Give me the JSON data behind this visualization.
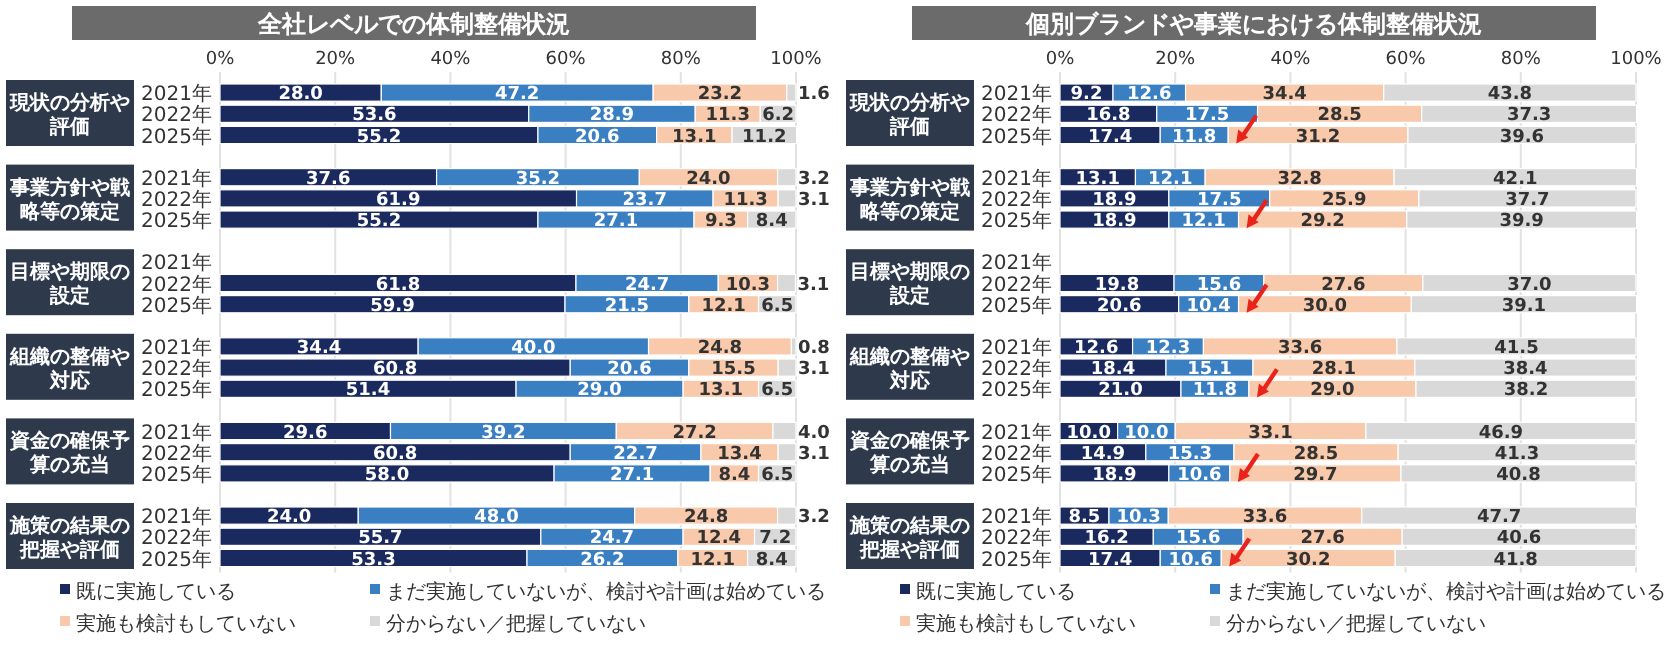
{
  "chart_data": [
    {
      "type": "bar",
      "orientation": "horizontal",
      "stacked": true,
      "grid": "x",
      "legend": "bottom",
      "title": "全社レベルでの体制整備状況",
      "categories": [
        "2021年",
        "2022年",
        "2025年",
        "2021年",
        "2022年",
        "2025年",
        "2021年",
        "2022年",
        "2025年",
        "2021年",
        "2022年",
        "2025年",
        "2021年",
        "2022年",
        "2025年",
        "2021年",
        "2022年",
        "2025年"
      ],
      "annotations": [
        "現状の分析や評価",
        "事業方針や戦略等の策定",
        "目標や期限の設定",
        "組織の整備や対応",
        "資金の確保予算の充当",
        "施策の結果の把握や評価"
      ],
      "xlim": [
        0,
        100
      ],
      "xticks": [
        {
          "value": 0,
          "label": "0%"
        },
        {
          "value": 20,
          "label": "20%"
        },
        {
          "value": 40,
          "label": "40%"
        },
        {
          "value": 60,
          "label": "60%"
        },
        {
          "value": 80,
          "label": "80%"
        },
        {
          "value": 100,
          "label": "100%"
        }
      ],
      "series": [
        {
          "name": "既に実施している",
          "color": "#1b2a5e",
          "values": [
            28.0,
            53.6,
            55.2,
            37.6,
            61.9,
            55.2,
            null,
            61.8,
            59.9,
            34.4,
            60.8,
            51.4,
            29.6,
            60.8,
            58.0,
            24.0,
            55.7,
            53.3
          ],
          "value_labels": [
            "28.0",
            "53.6",
            "55.2",
            "37.6",
            "61.9",
            "55.2",
            null,
            "61.8",
            "59.9",
            "34.4",
            "60.8",
            "51.4",
            "29.6",
            "60.8",
            "58.0",
            "24.0",
            "55.7",
            "53.3"
          ]
        },
        {
          "name": "まだ実施していないが、検討や計画は始めている",
          "color": "#3a7fc1",
          "values": [
            47.2,
            28.9,
            20.6,
            35.2,
            23.7,
            27.1,
            null,
            24.7,
            21.5,
            40.0,
            20.6,
            29.0,
            39.2,
            22.7,
            27.1,
            48.0,
            24.7,
            26.2
          ],
          "value_labels": [
            "47.2",
            "28.9",
            "20.6",
            "35.2",
            "23.7",
            "27.1",
            null,
            "24.7",
            "21.5",
            "40.0",
            "20.6",
            "29.0",
            "39.2",
            "22.7",
            "27.1",
            "48.0",
            "24.7",
            "26.2"
          ]
        },
        {
          "name": "実施も検討もしていない",
          "color": "#f8c9aa",
          "values": [
            23.2,
            11.3,
            13.1,
            24.0,
            11.3,
            9.3,
            null,
            10.3,
            12.1,
            24.8,
            15.5,
            13.1,
            27.2,
            13.4,
            8.4,
            24.8,
            12.4,
            12.1
          ],
          "value_labels": [
            "23.2",
            "11.3",
            "13.1",
            "24.0",
            "11.3",
            "9.3",
            null,
            "10.3",
            "12.1",
            "24.8",
            "15.5",
            "13.1",
            "27.2",
            "13.4",
            "8.4",
            "24.8",
            "12.4",
            "12.1"
          ]
        },
        {
          "name": "分からない／把握していない",
          "color": "#d9d9d9",
          "values": [
            1.6,
            6.2,
            11.2,
            3.2,
            3.1,
            8.4,
            null,
            3.1,
            6.5,
            0.8,
            3.1,
            6.5,
            4.0,
            3.1,
            6.5,
            3.2,
            7.2,
            8.4
          ],
          "value_labels": [
            "1.6",
            "6.2",
            "11.2",
            "3.2",
            "3.1",
            "8.4",
            null,
            "3.1",
            "6.5",
            "0.8",
            "3.1",
            "6.5",
            "4.0",
            "3.1",
            "6.5",
            "3.2",
            "7.2",
            "8.4"
          ]
        }
      ]
    },
    {
      "type": "bar",
      "orientation": "horizontal",
      "stacked": true,
      "grid": "x",
      "legend": "bottom",
      "title": "個別ブランドや事業における体制整備状況",
      "categories": [
        "2021年",
        "2022年",
        "2025年",
        "2021年",
        "2022年",
        "2025年",
        "2021年",
        "2022年",
        "2025年",
        "2021年",
        "2022年",
        "2025年",
        "2021年",
        "2022年",
        "2025年",
        "2021年",
        "2022年",
        "2025年"
      ],
      "annotations": [
        "現状の分析や評価",
        "事業方針や戦略等の策定",
        "目標や期限の設定",
        "組織の整備や対応",
        "資金の確保予算の充当",
        "施策の結果の把握や評価"
      ],
      "xlim": [
        0,
        100
      ],
      "xticks": [
        {
          "value": 0,
          "label": "0%"
        },
        {
          "value": 20,
          "label": "20%"
        },
        {
          "value": 40,
          "label": "40%"
        },
        {
          "value": 60,
          "label": "60%"
        },
        {
          "value": 80,
          "label": "80%"
        },
        {
          "value": 100,
          "label": "100%"
        }
      ],
      "series": [
        {
          "name": "既に実施している",
          "color": "#1b2a5e",
          "values": [
            9.2,
            16.8,
            17.4,
            13.1,
            18.9,
            18.9,
            null,
            19.8,
            20.6,
            12.6,
            18.4,
            21.0,
            10.0,
            14.9,
            18.9,
            8.5,
            16.2,
            17.4
          ],
          "value_labels": [
            "9.2",
            "16.8",
            "17.4",
            "13.1",
            "18.9",
            "18.9",
            null,
            "19.8",
            "20.6",
            "12.6",
            "18.4",
            "21.0",
            "10.0",
            "14.9",
            "18.9",
            "8.5",
            "16.2",
            "17.4"
          ]
        },
        {
          "name": "まだ実施していないが、検討や計画は始めている",
          "color": "#3a7fc1",
          "values": [
            12.6,
            17.5,
            11.8,
            12.1,
            17.5,
            12.1,
            null,
            15.6,
            10.4,
            12.3,
            15.1,
            11.8,
            10.0,
            15.3,
            10.6,
            10.3,
            15.6,
            10.6
          ],
          "value_labels": [
            "12.6",
            "17.5",
            "11.8",
            "12.1",
            "17.5",
            "12.1",
            null,
            "15.6",
            "10.4",
            "12.3",
            "15.1",
            "11.8",
            "10.0",
            "15.3",
            "10.6",
            "10.3",
            "15.6",
            "10.6"
          ]
        },
        {
          "name": "実施も検討もしていない",
          "color": "#f8c9aa",
          "values": [
            34.4,
            28.5,
            31.2,
            32.8,
            25.9,
            29.2,
            null,
            27.6,
            30.0,
            33.6,
            28.1,
            29.0,
            33.1,
            28.5,
            29.7,
            33.6,
            27.6,
            30.2
          ],
          "value_labels": [
            "34.4",
            "28.5",
            "31.2",
            "32.8",
            "25.9",
            "29.2",
            null,
            "27.6",
            "30.0",
            "33.6",
            "28.1",
            "29.0",
            "33.1",
            "28.5",
            "29.7",
            "33.6",
            "27.6",
            "30.2"
          ]
        },
        {
          "name": "分からない／把握していない",
          "color": "#d9d9d9",
          "values": [
            43.8,
            37.3,
            39.6,
            42.1,
            37.7,
            39.9,
            null,
            37.0,
            39.1,
            41.5,
            38.4,
            38.2,
            46.9,
            41.3,
            40.8,
            47.7,
            40.6,
            41.8
          ],
          "value_labels": [
            "43.8",
            "37.3",
            "39.6",
            "42.1",
            "37.7",
            "39.9",
            null,
            "37.0",
            "39.1",
            "41.5",
            "38.4",
            "38.2",
            "46.9",
            "41.3",
            "40.8",
            "47.7",
            "40.6",
            "41.8"
          ]
        }
      ]
    }
  ]
}
